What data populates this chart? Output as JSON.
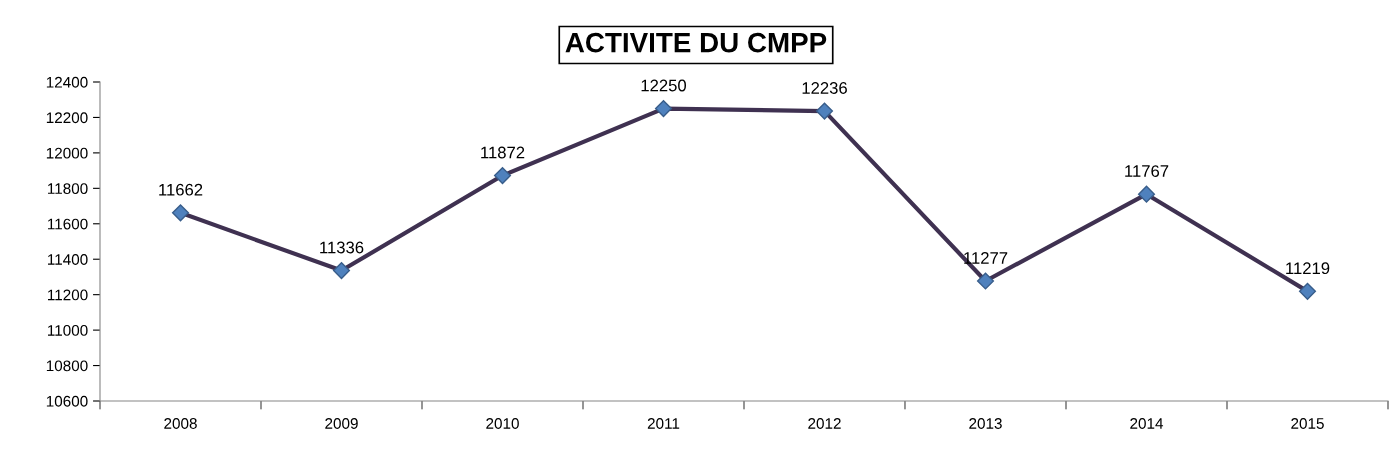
{
  "chart_data": {
    "type": "line",
    "title": "ACTIVITE DU CMPP",
    "categories": [
      "2008",
      "2009",
      "2010",
      "2011",
      "2012",
      "2013",
      "2014",
      "2015"
    ],
    "series": [
      {
        "color": "#3f3151",
        "values": [
          11662,
          11336,
          11872,
          12250,
          12236,
          11277,
          11767,
          11219
        ]
      }
    ],
    "ylim": [
      10600,
      12400
    ],
    "yticks": [
      10600,
      10800,
      11000,
      11200,
      11400,
      11600,
      11800,
      12000,
      12200,
      12400
    ],
    "grid": false,
    "legend": false,
    "marker": "diamond",
    "line_style": "solid",
    "data_labels": true
  }
}
